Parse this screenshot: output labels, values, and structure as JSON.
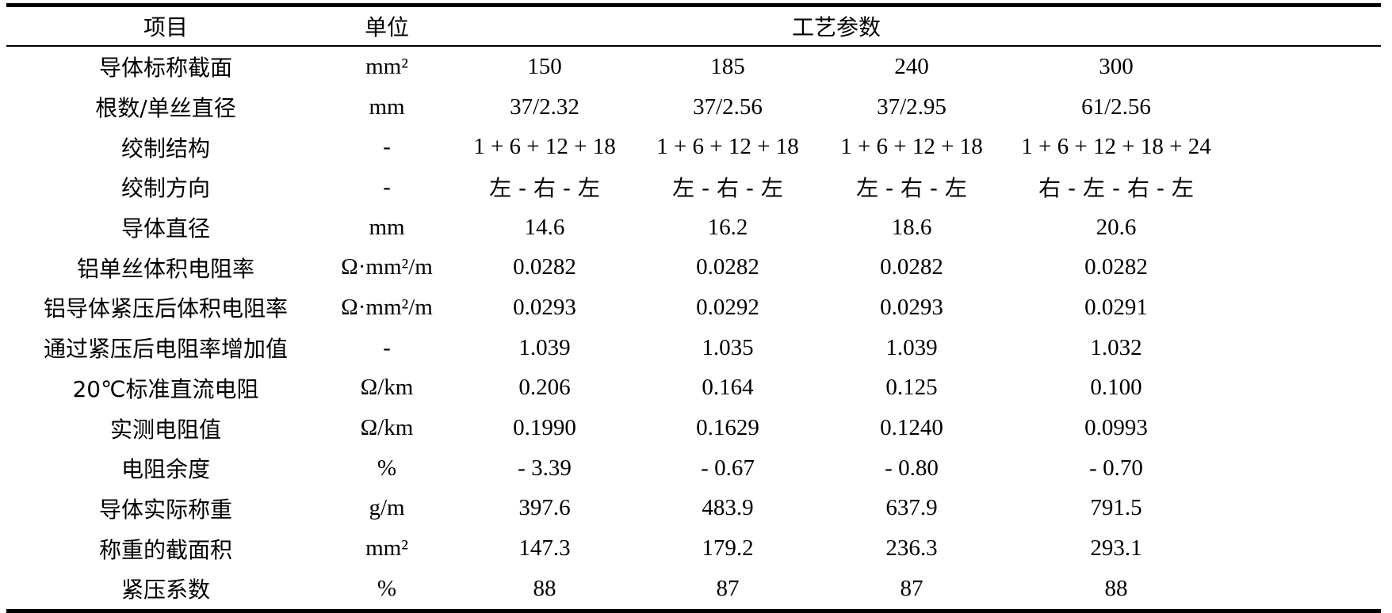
{
  "table": {
    "header": [
      "项目",
      "单位",
      "工艺参数"
    ],
    "rows": [
      [
        "导体标称截面",
        "mm²",
        "150",
        "185",
        "240",
        "300"
      ],
      [
        "根数/单丝直径",
        "mm",
        "37/2.32",
        "37/2.56",
        "37/2.95",
        "61/2.56"
      ],
      [
        "绞制结构",
        "-",
        "1 + 6 + 12 + 18",
        "1 + 6 + 12 + 18",
        "1 + 6 + 12 + 18",
        "1 + 6 + 12 + 18 + 24"
      ],
      [
        "绞制方向",
        "-",
        "左 - 右 - 左",
        "左 - 右 - 左",
        "左 - 右 - 左",
        "右 - 左 - 右 - 左"
      ],
      [
        "导体直径",
        "mm",
        "14.6",
        "16.2",
        "18.6",
        "20.6"
      ],
      [
        "铝单丝体积电阻率",
        "Ω·mm²/m",
        "0.0282",
        "0.0282",
        "0.0282",
        "0.0282"
      ],
      [
        "铝导体紧压后体积电阻率",
        "Ω·mm²/m",
        "0.0293",
        "0.0292",
        "0.0293",
        "0.0291"
      ],
      [
        "通过紧压后电阻率增加值",
        "-",
        "1.039",
        "1.035",
        "1.039",
        "1.032"
      ],
      [
        "20℃标准直流电阻",
        "Ω/km",
        "0.206",
        "0.164",
        "0.125",
        "0.100"
      ],
      [
        "实测电阻值",
        "Ω/km",
        "0.1990",
        "0.1629",
        "0.1240",
        "0.0993"
      ],
      [
        "电阻余度",
        "%",
        "- 3.39",
        "- 0.67",
        "- 0.80",
        "- 0.70"
      ],
      [
        "导体实际称重",
        "g/m",
        "397.6",
        "483.9",
        "637.9",
        "791.5"
      ],
      [
        "称重的截面积",
        "mm²",
        "147.3",
        "179.2",
        "236.3",
        "293.1"
      ],
      [
        "紧压系数",
        "%",
        "88",
        "87",
        "87",
        "88"
      ]
    ]
  }
}
